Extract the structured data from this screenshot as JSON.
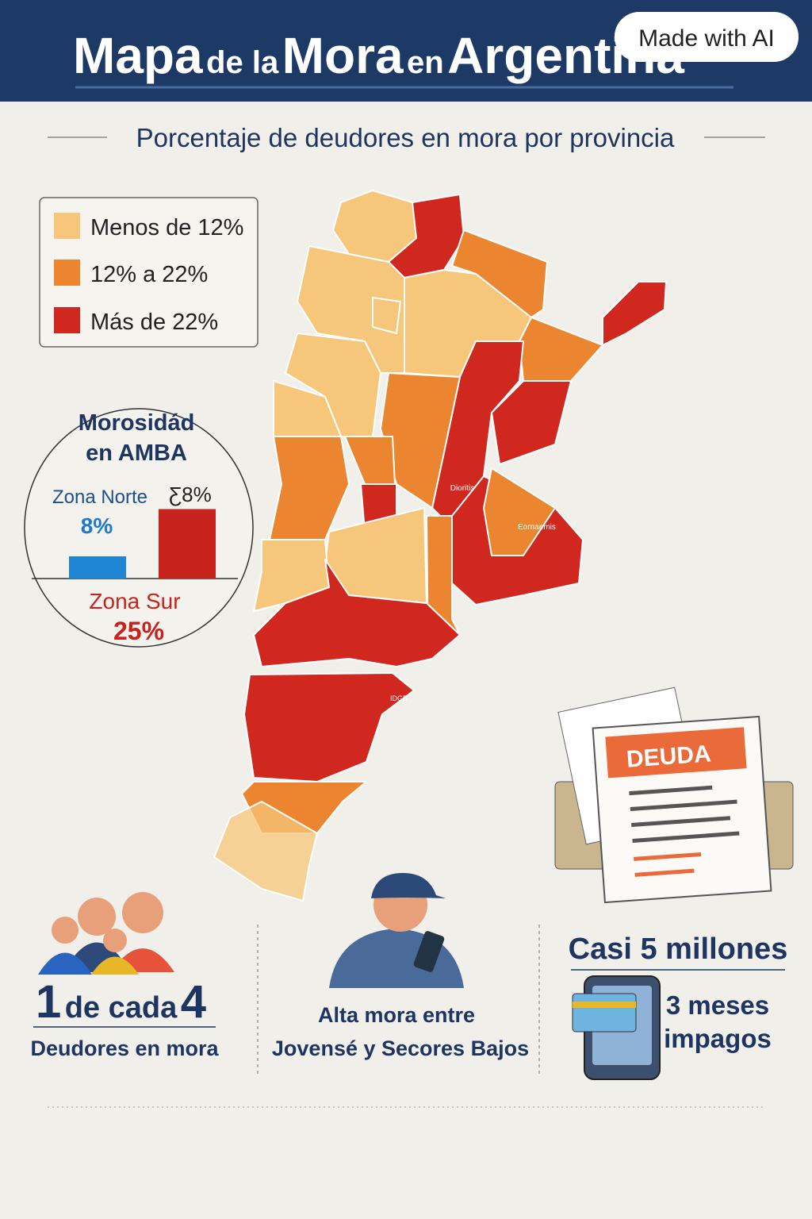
{
  "header": {
    "title_parts": [
      "Mapa",
      "de la",
      "Mora",
      "en",
      "Argentina"
    ],
    "badge": "Made with AI"
  },
  "subtitle": "Porcentaje de deudores en mora por provincia",
  "legend": [
    {
      "label": "Menos de 12%",
      "color": "#f6c77a"
    },
    {
      "label": "12% a 22%",
      "color": "#ec8530"
    },
    {
      "label": "Más de 22%",
      "color": "#d0271f"
    }
  ],
  "map": {
    "labels": [
      "Dioritis",
      "Eornaemis",
      "IDGB"
    ]
  },
  "amba": {
    "title": [
      "Morosidád",
      "en AMBA"
    ],
    "top_label": "Ƹ8%",
    "bars": [
      {
        "name": "Zona Norte",
        "value": 8,
        "value_label": "8%",
        "color": "#1f86d6"
      },
      {
        "name": "Zona Sur",
        "value": 25,
        "value_label": "25%",
        "color": "#c8221d"
      }
    ]
  },
  "document": {
    "header": "DEUDA"
  },
  "stats": [
    {
      "big": [
        "1",
        "de cada",
        "4"
      ],
      "caption": "Deudores en mora"
    },
    {
      "lines": [
        "Alta mora entre",
        "Jovensé y Secores Bajos"
      ]
    },
    {
      "headline": "Casi 5 millones",
      "lines": [
        "3 meses",
        "impagos"
      ]
    }
  ]
}
